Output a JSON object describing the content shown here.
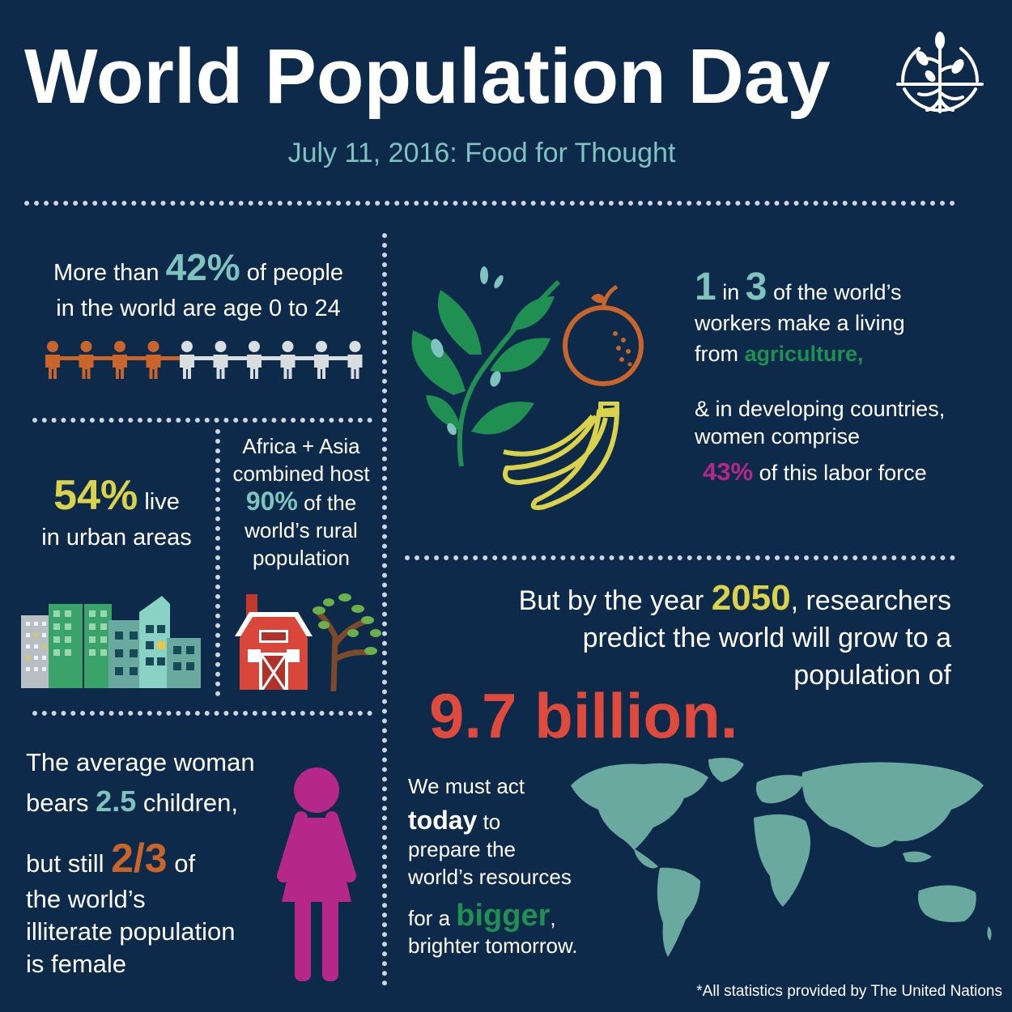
{
  "header": {
    "title": "World Population Day",
    "subtitle": "July 11, 2016: Food for Thought"
  },
  "stat_youth": {
    "pre": "More than",
    "value": "42%",
    "mid": "of people",
    "line2": "in the world are age 0 to 24",
    "figures_highlighted": 4,
    "figures_total": 10
  },
  "stat_urban": {
    "value": "54%",
    "line1_rest": "live",
    "line2": "in urban areas"
  },
  "stat_rural": {
    "line1": "Africa + Asia",
    "line2": "combined host",
    "value": "90%",
    "line3_rest": "of the",
    "line4": "world’s rural",
    "line5": "population"
  },
  "stat_agriculture": {
    "num1": "1",
    "in": "in",
    "num2": "3",
    "line1_rest": "of the world’s",
    "line2": "workers make a living",
    "line3_pre": "from",
    "highlight": "agriculture,",
    "line4": "& in developing countries,",
    "line5": "women comprise",
    "value": "43%",
    "line6_rest": "of this labor force"
  },
  "stat_growth": {
    "line1_pre": "But by the year",
    "year": "2050",
    "line1_post": ", researchers",
    "line2": "predict the world will grow to a",
    "line3": "population of",
    "big": "9.7 billion."
  },
  "stat_women": {
    "line1": "The average woman",
    "line2_pre": "bears",
    "children": "2.5",
    "line2_post": "children,",
    "line3_pre": "but still",
    "fraction": "2/3",
    "line3_post": "of",
    "line4": "the world’s",
    "line5": "illiterate population",
    "line6": "is female"
  },
  "call_to_action": {
    "line1": "We must act",
    "bold": "today",
    "bold_post": "to",
    "line3": "prepare the",
    "line4": "world’s resources",
    "line5_pre": "for a",
    "bigger": "bigger",
    "line5_post": ",",
    "line6": "brighter tomorrow."
  },
  "footer": {
    "note": "*All statistics provided by The United Nations"
  },
  "colors": {
    "background": "#0e2a4a",
    "teal": "#7fc3bf",
    "yellow": "#d9d24a",
    "green": "#1f8f52",
    "magenta": "#b52788",
    "orange": "#c9652a",
    "red": "#e04a3c",
    "person_grey": "#d8dde0"
  },
  "icons": [
    "tree-logo-icon",
    "people-chain-icon",
    "city-buildings-icon",
    "barn-icon",
    "tree-icon",
    "leaf-branch-icon",
    "orange-fruit-icon",
    "banana-icon",
    "woman-icon",
    "world-map-icon"
  ]
}
